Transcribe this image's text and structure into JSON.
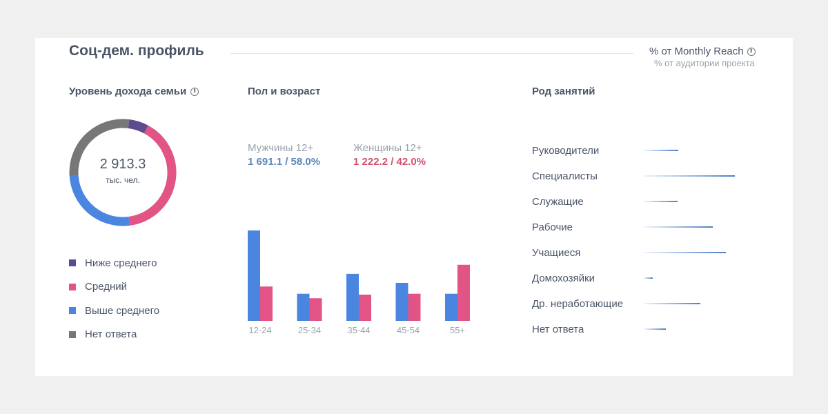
{
  "header": {
    "title": "Соц-дем. профиль",
    "metric_main": "% от Monthly Reach",
    "metric_sub": "% от аудитории проекта"
  },
  "income": {
    "title": "Уровень дохода семьи",
    "total": "2 913.3",
    "unit": "тыс. чел."
  },
  "gender_age": {
    "title": "Пол и возраст",
    "men": {
      "label": "Мужчины 12+",
      "value": "1 691.1 / 58.0%"
    },
    "women": {
      "label": "Женщины 12+",
      "value": "1 222.2 / 42.0%"
    }
  },
  "occupation": {
    "title": "Род занятий"
  },
  "colors": {
    "below_avg": "#5e4a8e",
    "avg": "#e25485",
    "above_avg": "#4a86e0",
    "no_answer": "#777777",
    "men": "#4a86e0",
    "women": "#e25485",
    "men_text": "#5a87b8",
    "women_text": "#d2506f"
  },
  "chart_data": [
    {
      "type": "pie",
      "title": "Уровень дохода семьи",
      "categories": [
        "Ниже среднего",
        "Средний",
        "Выше среднего",
        "Нет ответа"
      ],
      "values": [
        6,
        40,
        26,
        28
      ],
      "legend": "bottom"
    },
    {
      "type": "bar",
      "title": "Пол и возраст",
      "categories": [
        "12-24",
        "25-34",
        "35-44",
        "45-54",
        "55+"
      ],
      "series": [
        {
          "name": "Мужчины 12+",
          "values": [
            100,
            30,
            52,
            42,
            30
          ]
        },
        {
          "name": "Женщины 12+",
          "values": [
            38,
            25,
            29,
            30,
            62
          ]
        }
      ],
      "ylim": [
        0,
        100
      ]
    },
    {
      "type": "bar",
      "title": "Род занятий",
      "categories": [
        "Руководители",
        "Специалисты",
        "Служащие",
        "Рабочие",
        "Учащиеся",
        "Домохозяйки",
        "Др. неработающие",
        "Нет ответа"
      ],
      "values": [
        38,
        100,
        37,
        76,
        90,
        10,
        62,
        24
      ],
      "xlim": [
        0,
        100
      ]
    }
  ]
}
